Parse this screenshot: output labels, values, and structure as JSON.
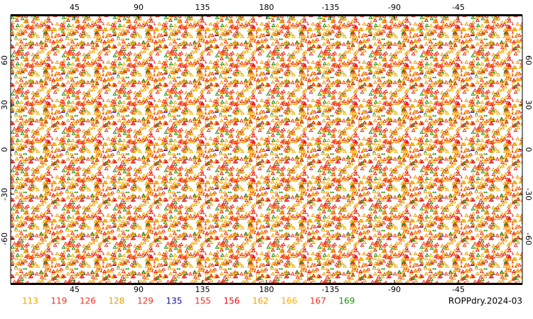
{
  "chart_data": {
    "type": "scatter",
    "title": "ROPPdry.2024-03",
    "xlim": [
      0,
      360
    ],
    "xticks": [
      45,
      90,
      135,
      180,
      {
        "value": 225,
        "label": "-135"
      },
      {
        "value": 270,
        "label": "-90"
      },
      {
        "value": 315,
        "label": "-45"
      }
    ],
    "ylim": [
      -90,
      90
    ],
    "yticks": [
      -60,
      -30,
      0,
      30,
      60
    ],
    "grid": false,
    "legend": "bottom",
    "series": [
      {
        "name": "113",
        "color": "#f0a000"
      },
      {
        "name": "119",
        "color": "#f03020"
      },
      {
        "name": "126",
        "color": "#f03020"
      },
      {
        "name": "128",
        "color": "#f0a000"
      },
      {
        "name": "129",
        "color": "#f03020"
      },
      {
        "name": "135",
        "color": "#1010a0"
      },
      {
        "name": "155",
        "color": "#f03020"
      },
      {
        "name": "156",
        "color": "#e01010"
      },
      {
        "name": "162",
        "color": "#f0a000"
      },
      {
        "name": "166",
        "color": "#f0b000"
      },
      {
        "name": "167",
        "color": "#f03020"
      },
      {
        "name": "169",
        "color": "#209010"
      }
    ]
  }
}
